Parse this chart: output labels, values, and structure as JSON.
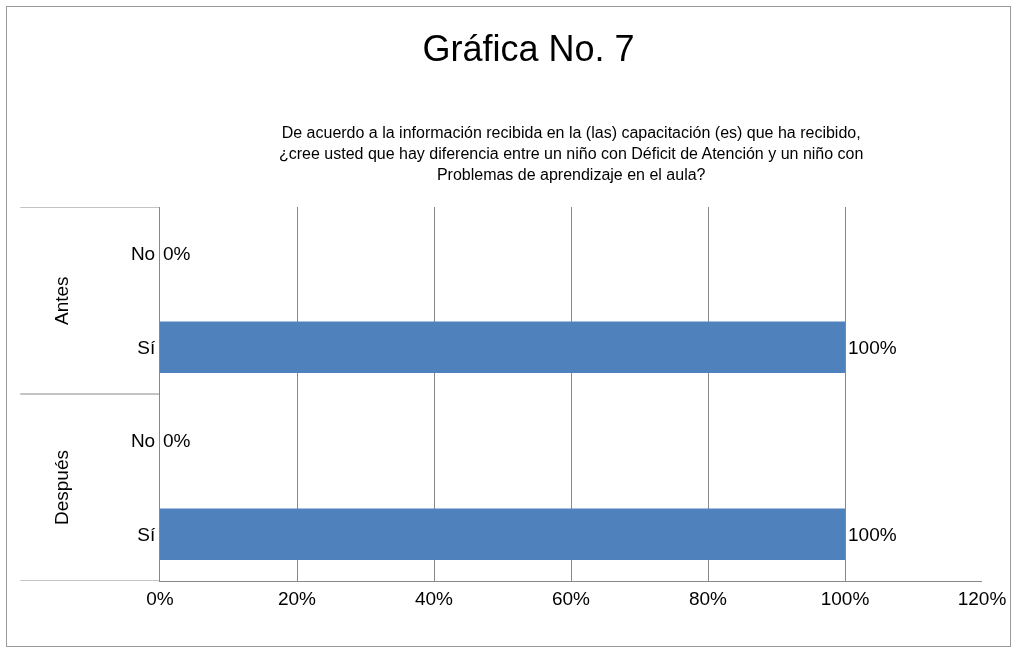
{
  "chart_data": {
    "type": "bar",
    "orientation": "horizontal",
    "title": "Gráfica No. 7",
    "subtitle": "De acuerdo a la información recibida en la (las) capacitación (es) que ha recibido, ¿cree usted que hay diferencia entre un niño con Déficit de Atención y un niño con Problemas de aprendizaje en el aula?",
    "categories": [
      "No",
      "Sí",
      "No",
      "Sí"
    ],
    "values": [
      0,
      100,
      0,
      100
    ],
    "value_labels": [
      "0%",
      "100%",
      "0%",
      "100%"
    ],
    "color": "#4f81bd",
    "xlim": [
      0,
      120
    ],
    "xticks": [
      {
        "value": 0,
        "label": "0%"
      },
      {
        "value": 20,
        "label": "20%"
      },
      {
        "value": 40,
        "label": "40%"
      },
      {
        "value": 60,
        "label": "60%"
      },
      {
        "value": 80,
        "label": "80%"
      },
      {
        "value": 100,
        "label": "100%"
      },
      {
        "value": 120,
        "label": "120%"
      }
    ],
    "grid": "x",
    "annotations": [
      "Antes",
      "Después"
    ]
  }
}
